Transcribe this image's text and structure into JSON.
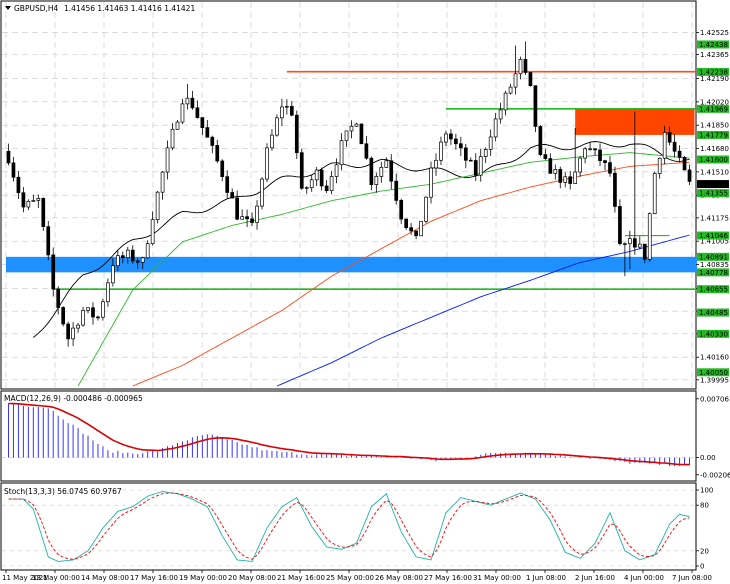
{
  "header": {
    "symbol": "GBPUSD,H4",
    "ohlc": "1.41456 1.41463 1.41416 1.41421"
  },
  "colors": {
    "bull": "#ffffff",
    "bear": "#000000",
    "ma_fast": "#000000",
    "ma_mid": "#2eb82e",
    "ma_slow": "#ff4a1a",
    "ma_long": "#0019ff",
    "resistance_line": "#ff4a1a",
    "support_line": "#22bb22",
    "supply_zone": "#ff4500",
    "demand_zone": "#1e90ff",
    "macd_hist": "#3333ff",
    "macd_signal": "#dd0000",
    "stoch_main": "#20b2aa",
    "stoch_signal": "#ff0000",
    "grid": "#c8c8c8",
    "highlight_label": "#22bb22"
  },
  "price_axis": {
    "ticks": [
      "1.42525",
      "1.42365",
      "1.42190",
      "1.42020",
      "1.41850",
      "1.41680",
      "1.41510",
      "1.41340",
      "1.41175",
      "1.41005",
      "1.40835",
      "1.40660",
      "1.40495",
      "1.40330",
      "1.40160",
      "1.39995"
    ],
    "levels": [
      "1.42438",
      "1.42238",
      "1.41969",
      "1.41779",
      "1.41600",
      "1.41355",
      "1.41046",
      "1.40891",
      "1.40778",
      "1.40655",
      "1.40485",
      "1.40330",
      "1.40050"
    ],
    "current": "1.41421",
    "min": 1.3995,
    "max": 1.4266
  },
  "time_axis": {
    "labels": [
      "11 May 2021",
      "13 May 00:00",
      "14 May 08:00",
      "17 May 16:00",
      "19 May 00:00",
      "20 May 08:00",
      "21 May 16:00",
      "25 May 00:00",
      "26 May 08:00",
      "27 May 16:00",
      "31 May 00:00",
      "1 Jun 08:00",
      "2 Jun 16:00",
      "4 Jun 00:00",
      "7 Jun 08:00"
    ]
  },
  "zones": {
    "resistance_line": {
      "price": 1.4224,
      "from_bar": 56
    },
    "support_upper": {
      "price": 1.41969,
      "from_bar": 88
    },
    "support_lower": {
      "price": 1.40655,
      "from_bar": 9
    },
    "supply_zone": {
      "top": 1.41969,
      "bottom": 1.41779,
      "from_bar": 114,
      "to_bar": 138
    },
    "demand_zone": {
      "top": 1.40891,
      "bottom": 1.40778,
      "from_bar": 0,
      "to_bar": 138
    },
    "minor_line": {
      "price": 1.41046,
      "from_bar": 124,
      "to_bar": 133
    }
  },
  "macd": {
    "title": "MACD(12,26,9) -0.000486 -0.000965",
    "ticks": [
      "0.007061",
      "0.00",
      "-0.002064"
    ],
    "min": -0.00245,
    "max": 0.0074
  },
  "stoch": {
    "title": "Stoch(13,3,3) 56.0745 60.9767",
    "ticks": [
      "100",
      "80",
      "20",
      "0"
    ],
    "min": 0,
    "max": 100
  },
  "chart_data": {
    "type": "candlestick",
    "x_type": "bar-index",
    "bar_count": 138,
    "anchors": [
      [
        0,
        1.4162
      ],
      [
        3,
        1.4125
      ],
      [
        6,
        1.413
      ],
      [
        9,
        1.4065
      ],
      [
        12,
        1.403
      ],
      [
        15,
        1.405
      ],
      [
        18,
        1.4045
      ],
      [
        21,
        1.4085
      ],
      [
        24,
        1.409
      ],
      [
        27,
        1.4085
      ],
      [
        29,
        1.412
      ],
      [
        32,
        1.4165
      ],
      [
        35,
        1.4205
      ],
      [
        37,
        1.42
      ],
      [
        40,
        1.4175
      ],
      [
        43,
        1.415
      ],
      [
        46,
        1.412
      ],
      [
        49,
        1.411
      ],
      [
        52,
        1.4165
      ],
      [
        55,
        1.42
      ],
      [
        57,
        1.4195
      ],
      [
        59,
        1.4135
      ],
      [
        62,
        1.415
      ],
      [
        64,
        1.414
      ],
      [
        67,
        1.417
      ],
      [
        70,
        1.419
      ],
      [
        73,
        1.4145
      ],
      [
        76,
        1.416
      ],
      [
        79,
        1.412
      ],
      [
        82,
        1.41
      ],
      [
        85,
        1.415
      ],
      [
        88,
        1.418
      ],
      [
        91,
        1.4165
      ],
      [
        94,
        1.415
      ],
      [
        97,
        1.418
      ],
      [
        100,
        1.4205
      ],
      [
        103,
        1.423
      ],
      [
        105,
        1.421
      ],
      [
        107,
        1.416
      ],
      [
        110,
        1.415
      ],
      [
        113,
        1.414
      ],
      [
        116,
        1.417
      ],
      [
        119,
        1.416
      ],
      [
        121,
        1.415
      ],
      [
        123,
        1.4095
      ],
      [
        126,
        1.41
      ],
      [
        128,
        1.409
      ],
      [
        130,
        1.415
      ],
      [
        132,
        1.418
      ],
      [
        134,
        1.4165
      ],
      [
        137,
        1.4142
      ]
    ],
    "spikes": [
      [
        104,
        1.4246
      ],
      [
        114,
        1.4183
      ],
      [
        126,
        1.4195
      ],
      [
        125,
        1.408
      ],
      [
        124,
        1.4075
      ],
      [
        36,
        1.4215
      ],
      [
        102,
        1.4243
      ]
    ],
    "moving_averages": [
      {
        "key": "ma_fast",
        "anchors": [
          [
            5,
            1.403
          ],
          [
            15,
            1.4075
          ],
          [
            25,
            1.41
          ],
          [
            35,
            1.412
          ],
          [
            45,
            1.413
          ],
          [
            55,
            1.4145
          ],
          [
            65,
            1.4155
          ],
          [
            75,
            1.4158
          ],
          [
            85,
            1.4152
          ],
          [
            95,
            1.4148
          ],
          [
            105,
            1.4168
          ],
          [
            115,
            1.417
          ],
          [
            125,
            1.4172
          ],
          [
            135,
            1.416
          ],
          [
            137,
            1.4159
          ]
        ]
      },
      {
        "key": "ma_mid",
        "anchors": [
          [
            14,
            1.3995
          ],
          [
            25,
            1.4065
          ],
          [
            35,
            1.41
          ],
          [
            45,
            1.4112
          ],
          [
            55,
            1.412
          ],
          [
            65,
            1.413
          ],
          [
            75,
            1.4137
          ],
          [
            85,
            1.4142
          ],
          [
            95,
            1.415
          ],
          [
            105,
            1.4158
          ],
          [
            115,
            1.4162
          ],
          [
            125,
            1.4165
          ],
          [
            137,
            1.4161
          ]
        ]
      },
      {
        "key": "ma_slow",
        "anchors": [
          [
            25,
            1.3995
          ],
          [
            35,
            1.401
          ],
          [
            45,
            1.403
          ],
          [
            55,
            1.405
          ],
          [
            65,
            1.4075
          ],
          [
            75,
            1.4095
          ],
          [
            85,
            1.4115
          ],
          [
            95,
            1.413
          ],
          [
            105,
            1.414
          ],
          [
            115,
            1.4148
          ],
          [
            125,
            1.4155
          ],
          [
            137,
            1.4158
          ]
        ]
      },
      {
        "key": "ma_long",
        "anchors": [
          [
            54,
            1.3995
          ],
          [
            65,
            1.4012
          ],
          [
            75,
            1.403
          ],
          [
            85,
            1.4045
          ],
          [
            95,
            1.406
          ],
          [
            105,
            1.4072
          ],
          [
            115,
            1.4085
          ],
          [
            125,
            1.4093
          ],
          [
            137,
            1.4105
          ]
        ]
      }
    ],
    "macd_anchors": [
      [
        0,
        0.0065
      ],
      [
        8,
        0.006
      ],
      [
        15,
        0.003
      ],
      [
        20,
        0.0008
      ],
      [
        25,
        0.0005
      ],
      [
        30,
        0.0008
      ],
      [
        35,
        0.002
      ],
      [
        40,
        0.0028
      ],
      [
        42,
        0.0025
      ],
      [
        46,
        0.0018
      ],
      [
        52,
        0.0008
      ],
      [
        60,
        0.0004
      ],
      [
        70,
        0.0002
      ],
      [
        80,
        0.0
      ],
      [
        86,
        -0.0004
      ],
      [
        92,
        0.0
      ],
      [
        98,
        0.0006
      ],
      [
        104,
        0.0006
      ],
      [
        112,
        0.0002
      ],
      [
        118,
        -0.0001
      ],
      [
        124,
        -0.0006
      ],
      [
        130,
        -0.0008
      ],
      [
        137,
        -0.001
      ]
    ],
    "stoch_anchors": [
      [
        0,
        88
      ],
      [
        3,
        88
      ],
      [
        5,
        75
      ],
      [
        8,
        12
      ],
      [
        10,
        6
      ],
      [
        13,
        8
      ],
      [
        16,
        20
      ],
      [
        19,
        50
      ],
      [
        22,
        72
      ],
      [
        25,
        78
      ],
      [
        28,
        92
      ],
      [
        31,
        98
      ],
      [
        34,
        95
      ],
      [
        37,
        88
      ],
      [
        40,
        78
      ],
      [
        43,
        40
      ],
      [
        46,
        8
      ],
      [
        49,
        6
      ],
      [
        52,
        50
      ],
      [
        55,
        78
      ],
      [
        58,
        90
      ],
      [
        61,
        52
      ],
      [
        64,
        25
      ],
      [
        67,
        22
      ],
      [
        70,
        30
      ],
      [
        73,
        78
      ],
      [
        76,
        95
      ],
      [
        79,
        45
      ],
      [
        82,
        12
      ],
      [
        85,
        8
      ],
      [
        88,
        70
      ],
      [
        91,
        90
      ],
      [
        94,
        85
      ],
      [
        97,
        80
      ],
      [
        100,
        88
      ],
      [
        103,
        96
      ],
      [
        106,
        88
      ],
      [
        109,
        60
      ],
      [
        112,
        18
      ],
      [
        115,
        10
      ],
      [
        118,
        30
      ],
      [
        121,
        70
      ],
      [
        124,
        20
      ],
      [
        127,
        8
      ],
      [
        130,
        15
      ],
      [
        133,
        55
      ],
      [
        135,
        68
      ],
      [
        137,
        65
      ]
    ]
  }
}
